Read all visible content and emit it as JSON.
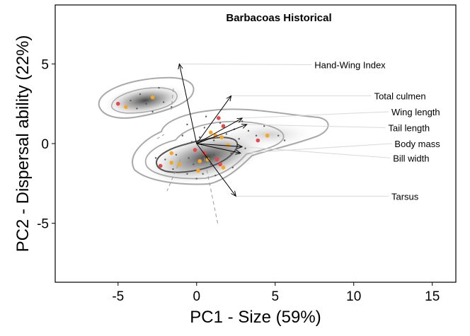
{
  "chart_data": {
    "type": "scatter",
    "title": "Barbacoas Historical",
    "xlabel": "PC1 - Size (59%)",
    "ylabel": "PC2 - Dispersal ability (22%)",
    "xlim": [
      -9,
      16.5
    ],
    "ylim": [
      -8.7,
      8.7
    ],
    "xticks": [
      -5,
      0,
      5,
      10,
      15
    ],
    "yticks": [
      -5,
      0,
      5
    ],
    "grid": false,
    "colors": {
      "red": "#e8474b",
      "orange": "#f5a623",
      "grey": "#5a5a5a",
      "contour": "#a9a9a9",
      "label_line": "#d9d9d9"
    },
    "loading_vectors": [
      {
        "name": "Hand-Wing Index",
        "x": -1.1,
        "y": 5.0,
        "label_x": 7.5,
        "label_y": 4.95
      },
      {
        "name": "Total culmen",
        "x": 2.2,
        "y": 3.0,
        "label_x": 11.3,
        "label_y": 3.0
      },
      {
        "name": "Wing length",
        "x": 2.9,
        "y": 1.6,
        "label_x": 12.4,
        "label_y": 2.0
      },
      {
        "name": "Tail length",
        "x": 3.2,
        "y": 1.2,
        "label_x": 12.2,
        "label_y": 1.0
      },
      {
        "name": "Body mass",
        "x": 2.8,
        "y": -0.6,
        "label_x": 12.6,
        "label_y": 0.0
      },
      {
        "name": "Bill width",
        "x": 2.9,
        "y": -0.2,
        "label_x": 12.5,
        "label_y": -0.9
      },
      {
        "name": "Tarsus",
        "x": 2.5,
        "y": -3.3,
        "label_x": 12.4,
        "label_y": -3.3
      }
    ],
    "series": [
      {
        "color": "red",
        "points": [
          [
            -5.0,
            2.5
          ],
          [
            1.4,
            1.6
          ],
          [
            1.7,
            1.1
          ],
          [
            1.5,
            -1.3
          ],
          [
            -0.1,
            -0.4
          ],
          [
            -2.3,
            -1.4
          ],
          [
            3.9,
            0.2
          ],
          [
            0.5,
            -0.6
          ],
          [
            1.3,
            -1.0
          ]
        ]
      },
      {
        "color": "orange",
        "points": [
          [
            -4.5,
            2.3
          ],
          [
            -2.8,
            2.9
          ],
          [
            -1.6,
            -0.6
          ],
          [
            -1.6,
            -1.2
          ],
          [
            -1.1,
            -1.3
          ],
          [
            0.2,
            -1.1
          ],
          [
            0.7,
            -1.0
          ],
          [
            0.1,
            -1.7
          ],
          [
            2.0,
            -0.1
          ],
          [
            1.2,
            0.5
          ],
          [
            1.6,
            0.4
          ],
          [
            4.5,
            0.5
          ],
          [
            1.7,
            -1.5
          ],
          [
            0.9,
            0.7
          ]
        ]
      },
      {
        "color": "grey",
        "points": [
          [
            -4.2,
            2.7
          ],
          [
            -3.6,
            3.1
          ],
          [
            -3.2,
            2.5
          ],
          [
            -2.4,
            3.5
          ],
          [
            -2.1,
            2.6
          ],
          [
            -3.8,
            2.2
          ],
          [
            -1.6,
            2.3
          ],
          [
            -2.8,
            2.0
          ],
          [
            -0.6,
            1.2
          ],
          [
            0.5,
            1.0
          ],
          [
            0.2,
            0.4
          ],
          [
            -0.3,
            0.1
          ],
          [
            1.1,
            0.2
          ],
          [
            1.9,
            0.6
          ],
          [
            2.4,
            0.9
          ],
          [
            2.7,
            0.3
          ],
          [
            3.3,
            0.8
          ],
          [
            3.8,
            0.5
          ],
          [
            4.3,
            1.1
          ],
          [
            5.2,
            0.5
          ],
          [
            5.6,
            0.2
          ],
          [
            3.1,
            -0.3
          ],
          [
            2.2,
            -0.6
          ],
          [
            1.1,
            -0.7
          ],
          [
            -0.5,
            -0.9
          ],
          [
            -1.3,
            -0.7
          ],
          [
            -2.0,
            -1.0
          ],
          [
            -1.5,
            -1.6
          ],
          [
            -0.6,
            -1.9
          ],
          [
            0.4,
            -1.9
          ],
          [
            1.2,
            -2.0
          ],
          [
            2.3,
            -1.5
          ],
          [
            -0.2,
            -1.3
          ],
          [
            0.9,
            -1.3
          ],
          [
            -2.6,
            -0.9
          ],
          [
            1.5,
            1.3
          ],
          [
            0.6,
            1.7
          ],
          [
            2.9,
            1.4
          ],
          [
            -0.9,
            0.5
          ],
          [
            0.0,
            -2.2
          ]
        ]
      }
    ],
    "annotations": [],
    "legend": "none"
  }
}
